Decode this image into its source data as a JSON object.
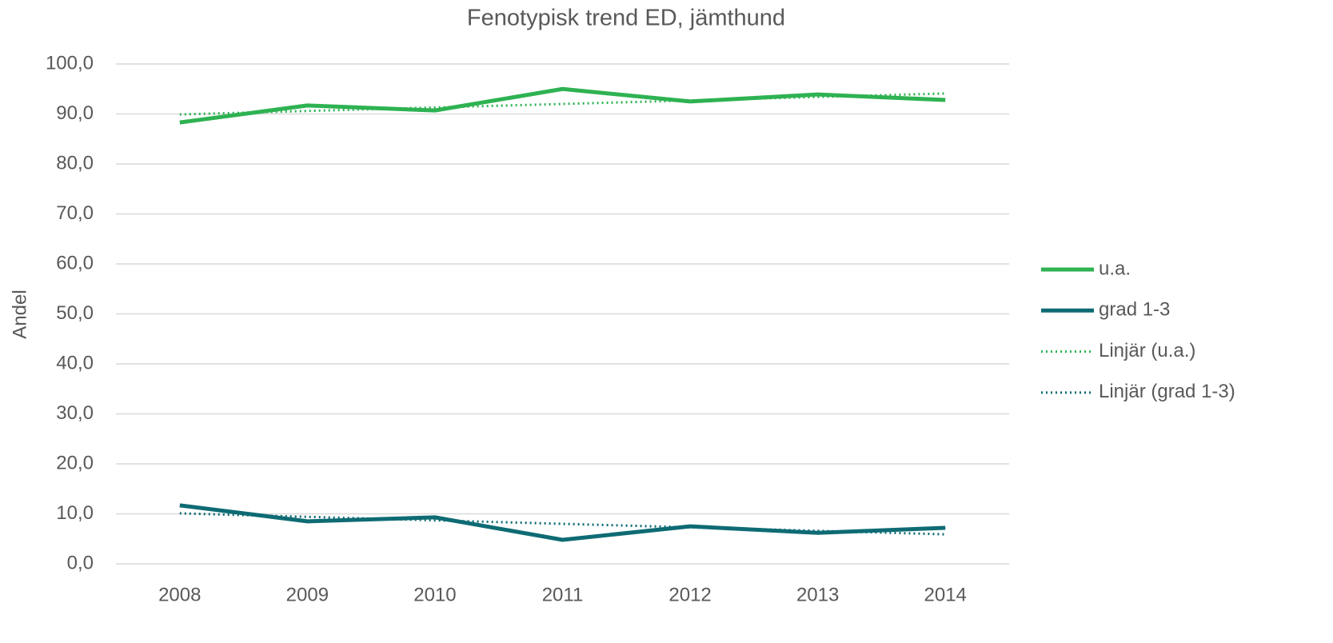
{
  "chart_data": {
    "type": "line",
    "title": "Fenotypisk trend ED, jämthund",
    "y_label": "Andel",
    "categories": [
      "2008",
      "2009",
      "2010",
      "2011",
      "2012",
      "2013",
      "2014"
    ],
    "series": [
      {
        "name": "u.a.",
        "color": "#2eb252",
        "style": "solid",
        "values": [
          88.3,
          91.7,
          90.7,
          95.0,
          92.5,
          93.9,
          92.8
        ]
      },
      {
        "name": "grad 1-3",
        "color": "#0e6b74",
        "style": "solid",
        "values": [
          11.7,
          8.5,
          9.3,
          4.8,
          7.5,
          6.2,
          7.2
        ]
      },
      {
        "name": "Linjär (u.a.)",
        "color": "#2eb252",
        "style": "dotted",
        "values": [
          89.9,
          90.6,
          91.3,
          92.0,
          92.7,
          93.4,
          94.1
        ]
      },
      {
        "name": "Linjär (grad 1-3)",
        "color": "#0e6b74",
        "style": "dotted",
        "values": [
          10.1,
          9.4,
          8.7,
          8.0,
          7.3,
          6.6,
          5.9
        ]
      }
    ],
    "ylim": [
      0,
      100
    ],
    "yticks": [
      {
        "value": 0,
        "label": "0,0"
      },
      {
        "value": 10,
        "label": "10,0"
      },
      {
        "value": 20,
        "label": "20,0"
      },
      {
        "value": 30,
        "label": "30,0"
      },
      {
        "value": 40,
        "label": "40,0"
      },
      {
        "value": 50,
        "label": "50,0"
      },
      {
        "value": 60,
        "label": "60,0"
      },
      {
        "value": 70,
        "label": "70,0"
      },
      {
        "value": 80,
        "label": "80,0"
      },
      {
        "value": 90,
        "label": "90,0"
      },
      {
        "value": 100,
        "label": "100,0"
      }
    ],
    "grid": true,
    "legend": "right"
  }
}
